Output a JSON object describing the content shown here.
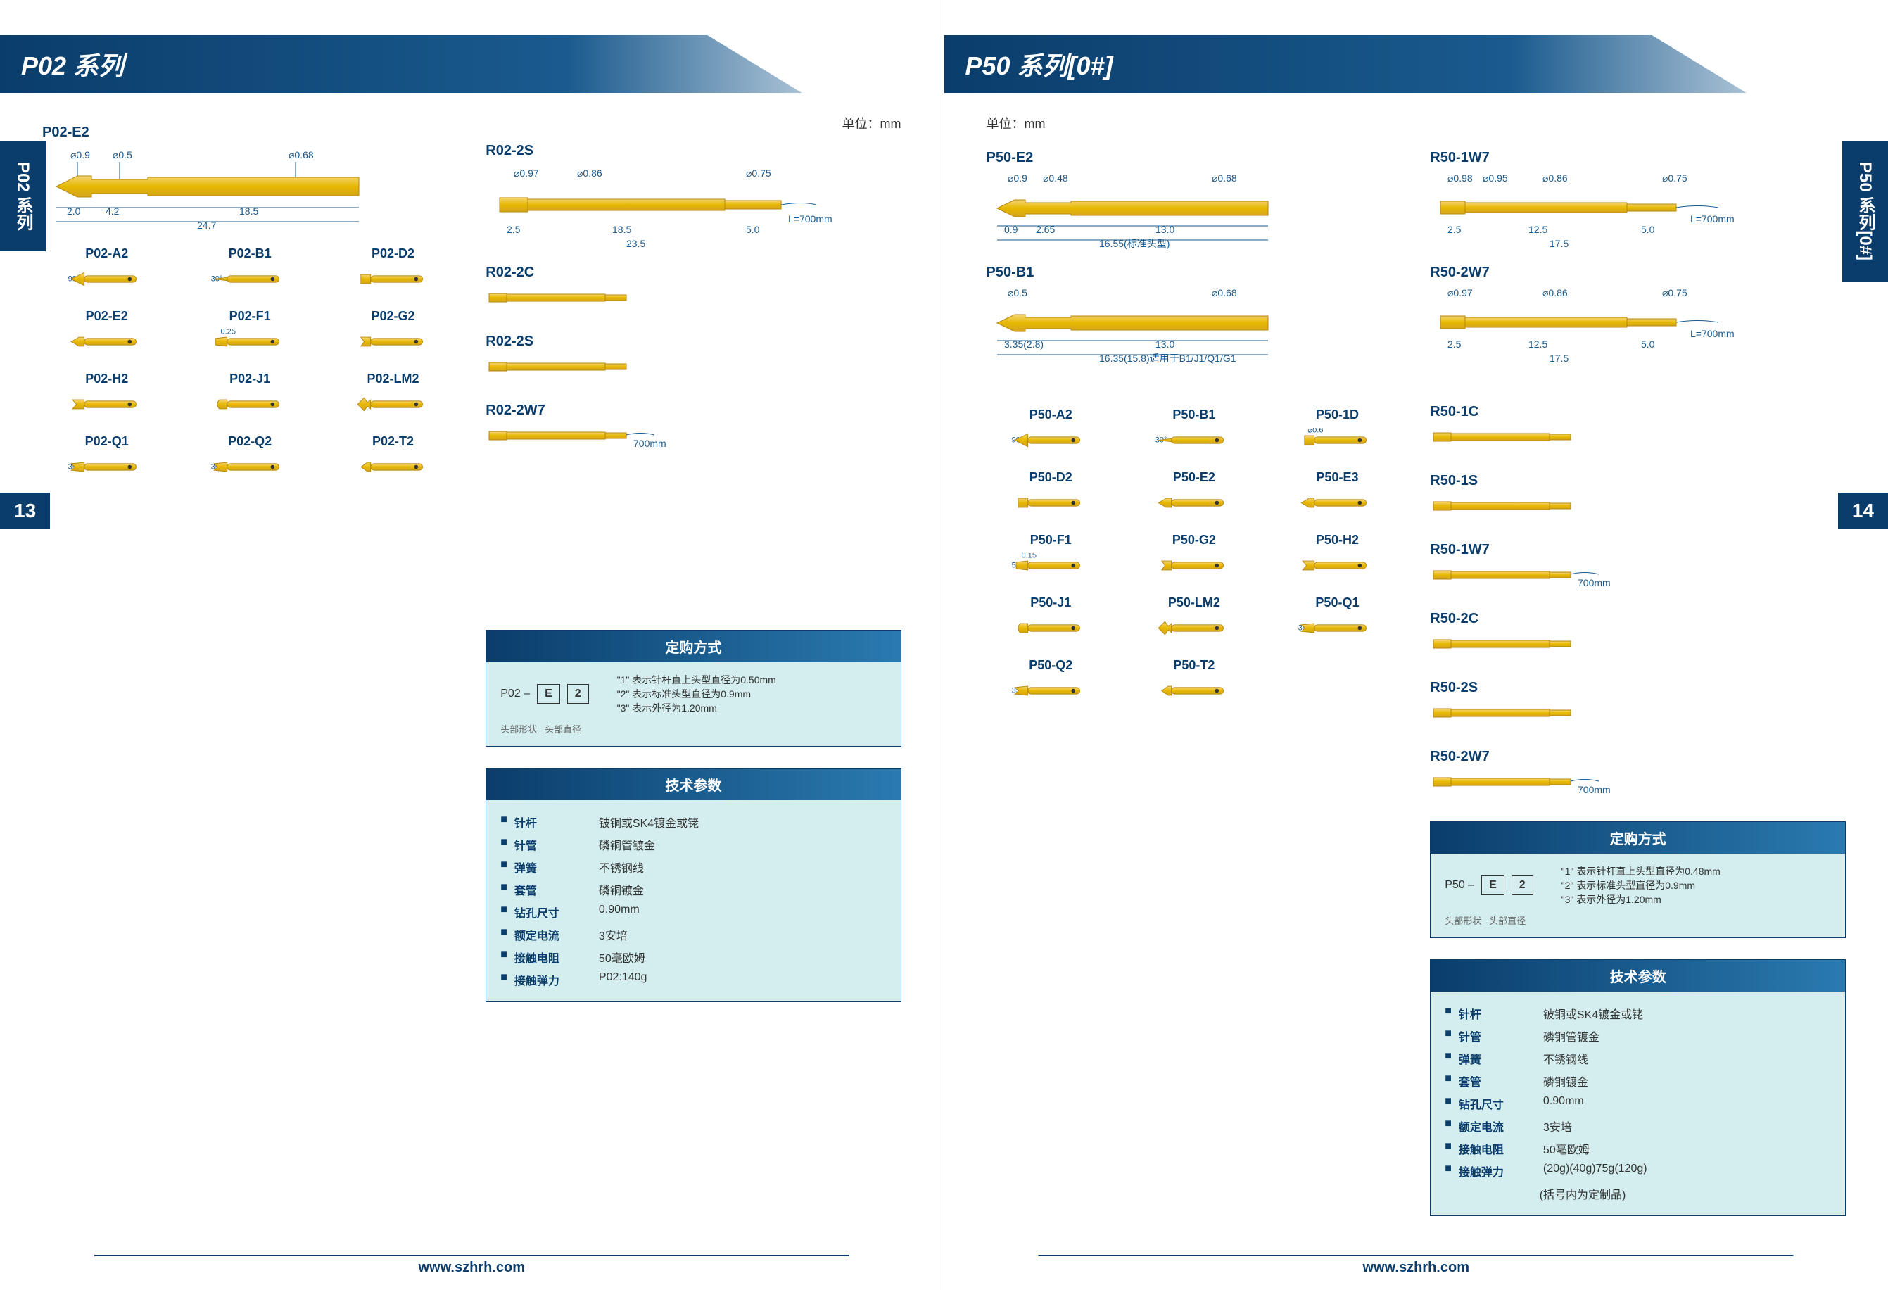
{
  "unit_label": "单位：mm",
  "footer_url": "www.szhrh.com",
  "colors": {
    "primary": "#0a3d6b",
    "gold_light": "#f5d576",
    "gold_dark": "#d4a520",
    "gold_stroke": "#b8860b",
    "info_bg": "#d4eef0",
    "dim_color": "#1a5a8e"
  },
  "left_page": {
    "header": "P02 系列",
    "side_tab": "P02 系列",
    "page_num": "13",
    "main_probe": {
      "label": "P02-E2",
      "dims": {
        "d1": "⌀0.9",
        "d2": "⌀0.5",
        "d3": "⌀0.68",
        "l1": "2.0",
        "l2": "4.2",
        "l3": "18.5",
        "total": "24.7"
      }
    },
    "receptacle_main": {
      "label": "R02-2S",
      "dims": {
        "d1": "⌀0.97",
        "d2": "⌀0.86",
        "d3": "⌀0.75",
        "l1": "2.5",
        "l2": "18.5",
        "l3": "5.0",
        "total": "23.5"
      },
      "wire": "L=700mm"
    },
    "small_probes": [
      {
        "label": "P02-A2",
        "angle": "90°",
        "tip": "cone"
      },
      {
        "label": "P02-B1",
        "angle": "30°",
        "tip": "needle"
      },
      {
        "label": "P02-D2",
        "tip": "flat"
      },
      {
        "label": "P02-E2",
        "tip": "spear"
      },
      {
        "label": "P02-F1",
        "note": "0.25",
        "tip": "chisel"
      },
      {
        "label": "P02-G2",
        "tip": "cup"
      },
      {
        "label": "P02-H2",
        "tip": "crown"
      },
      {
        "label": "P02-J1",
        "tip": "round"
      },
      {
        "label": "P02-LM2",
        "tip": "star"
      },
      {
        "label": "P02-Q1",
        "angle": "35°",
        "tip": "serrated"
      },
      {
        "label": "P02-Q2",
        "angle": "35°",
        "tip": "serrated"
      },
      {
        "label": "P02-T2",
        "tip": "blade"
      }
    ],
    "receptacles": [
      {
        "label": "R02-2C"
      },
      {
        "label": "R02-2S"
      },
      {
        "label": "R02-2W7",
        "note": "700mm"
      }
    ],
    "order_info": {
      "title": "定购方式",
      "prefix": "P02 –",
      "box1": "E",
      "box2": "2",
      "sub1": "头部形状",
      "sub2": "头部直径",
      "notes": [
        "\"1\" 表示针杆直上头型直径为0.50mm",
        "\"2\" 表示标准头型直径为0.9mm",
        "\"3\" 表示外径为1.20mm"
      ]
    },
    "specs": {
      "title": "技术参数",
      "rows": [
        {
          "label": "针杆",
          "value": "铍铜或SK4镀金或铑"
        },
        {
          "label": "针管",
          "value": "磷铜管镀金"
        },
        {
          "label": "弹簧",
          "value": "不锈钢线"
        },
        {
          "label": "套管",
          "value": "磷铜镀金"
        },
        {
          "label": "钻孔尺寸",
          "value": "0.90mm"
        },
        {
          "label": "额定电流",
          "value": "3安培"
        },
        {
          "label": "接触电阻",
          "value": "50毫欧姆"
        },
        {
          "label": "接触弹力",
          "value": "P02:140g"
        }
      ]
    }
  },
  "right_page": {
    "header": "P50 系列[0#]",
    "side_tab": "P50 系列[0#]",
    "page_num": "14",
    "main_probes": [
      {
        "label": "P50-E2",
        "dims": {
          "d1": "⌀0.9",
          "d2": "⌀0.48",
          "d3": "⌀0.68",
          "l1": "0.9",
          "l2": "2.65",
          "l3": "13.0",
          "total": "16.55(标准头型)"
        }
      },
      {
        "label": "P50-B1",
        "dims": {
          "d1": "⌀0.5",
          "d3": "⌀0.68",
          "l1": "3.35(2.8)",
          "l3": "13.0",
          "total": "16.35(15.8)适用于B1/J1/Q1/G1"
        }
      }
    ],
    "receptacle_mains": [
      {
        "label": "R50-1W7",
        "dims": {
          "d1": "⌀0.98",
          "d2": "⌀0.95",
          "d3": "⌀0.86",
          "d4": "⌀0.75",
          "l1": "2.5",
          "l2": "12.5",
          "l3": "5.0",
          "total": "17.5"
        },
        "wire": "L=700mm"
      },
      {
        "label": "R50-2W7",
        "dims": {
          "d1": "⌀0.97",
          "d3": "⌀0.86",
          "d4": "⌀0.75",
          "l1": "2.5",
          "l2": "12.5",
          "l3": "5.0",
          "total": "17.5"
        },
        "wire": "L=700mm"
      }
    ],
    "small_probes": [
      {
        "label": "P50-A2",
        "angle": "90°",
        "tip": "cone"
      },
      {
        "label": "P50-B1",
        "angle": "30°",
        "tip": "needle"
      },
      {
        "label": "P50-1D",
        "note": "⌀0.6",
        "tip": "flat"
      },
      {
        "label": "P50-D2",
        "tip": "flat"
      },
      {
        "label": "P50-E2",
        "tip": "spear"
      },
      {
        "label": "P50-E3",
        "tip": "spear"
      },
      {
        "label": "P50-F1",
        "note": "0.15",
        "angle": "50°",
        "tip": "chisel"
      },
      {
        "label": "P50-G2",
        "tip": "cup"
      },
      {
        "label": "P50-H2",
        "tip": "crown"
      },
      {
        "label": "P50-J1",
        "tip": "round"
      },
      {
        "label": "P50-LM2",
        "tip": "star"
      },
      {
        "label": "P50-Q1",
        "angle": "35°",
        "tip": "serrated"
      },
      {
        "label": "P50-Q2",
        "angle": "35°",
        "tip": "serrated"
      },
      {
        "label": "P50-T2",
        "tip": "blade"
      }
    ],
    "receptacles": [
      {
        "label": "R50-1C"
      },
      {
        "label": "R50-1S"
      },
      {
        "label": "R50-1W7",
        "note": "700mm"
      },
      {
        "label": "R50-2C"
      },
      {
        "label": "R50-2S"
      },
      {
        "label": "R50-2W7",
        "note": "700mm"
      }
    ],
    "order_info": {
      "title": "定购方式",
      "prefix": "P50 –",
      "box1": "E",
      "box2": "2",
      "sub1": "头部形状",
      "sub2": "头部直径",
      "notes": [
        "\"1\" 表示针杆直上头型直径为0.48mm",
        "\"2\" 表示标准头型直径为0.9mm",
        "\"3\" 表示外径为1.20mm"
      ]
    },
    "specs": {
      "title": "技术参数",
      "rows": [
        {
          "label": "针杆",
          "value": "铍铜或SK4镀金或铑"
        },
        {
          "label": "针管",
          "value": "磷铜管镀金"
        },
        {
          "label": "弹簧",
          "value": "不锈钢线"
        },
        {
          "label": "套管",
          "value": "磷铜镀金"
        },
        {
          "label": "钻孔尺寸",
          "value": "0.90mm"
        },
        {
          "label": "额定电流",
          "value": "3安培"
        },
        {
          "label": "接触电阻",
          "value": "50毫欧姆"
        },
        {
          "label": "接触弹力",
          "value": "(20g)(40g)75g(120g)"
        },
        {
          "label": "",
          "value": "(括号内为定制品)"
        }
      ]
    }
  }
}
